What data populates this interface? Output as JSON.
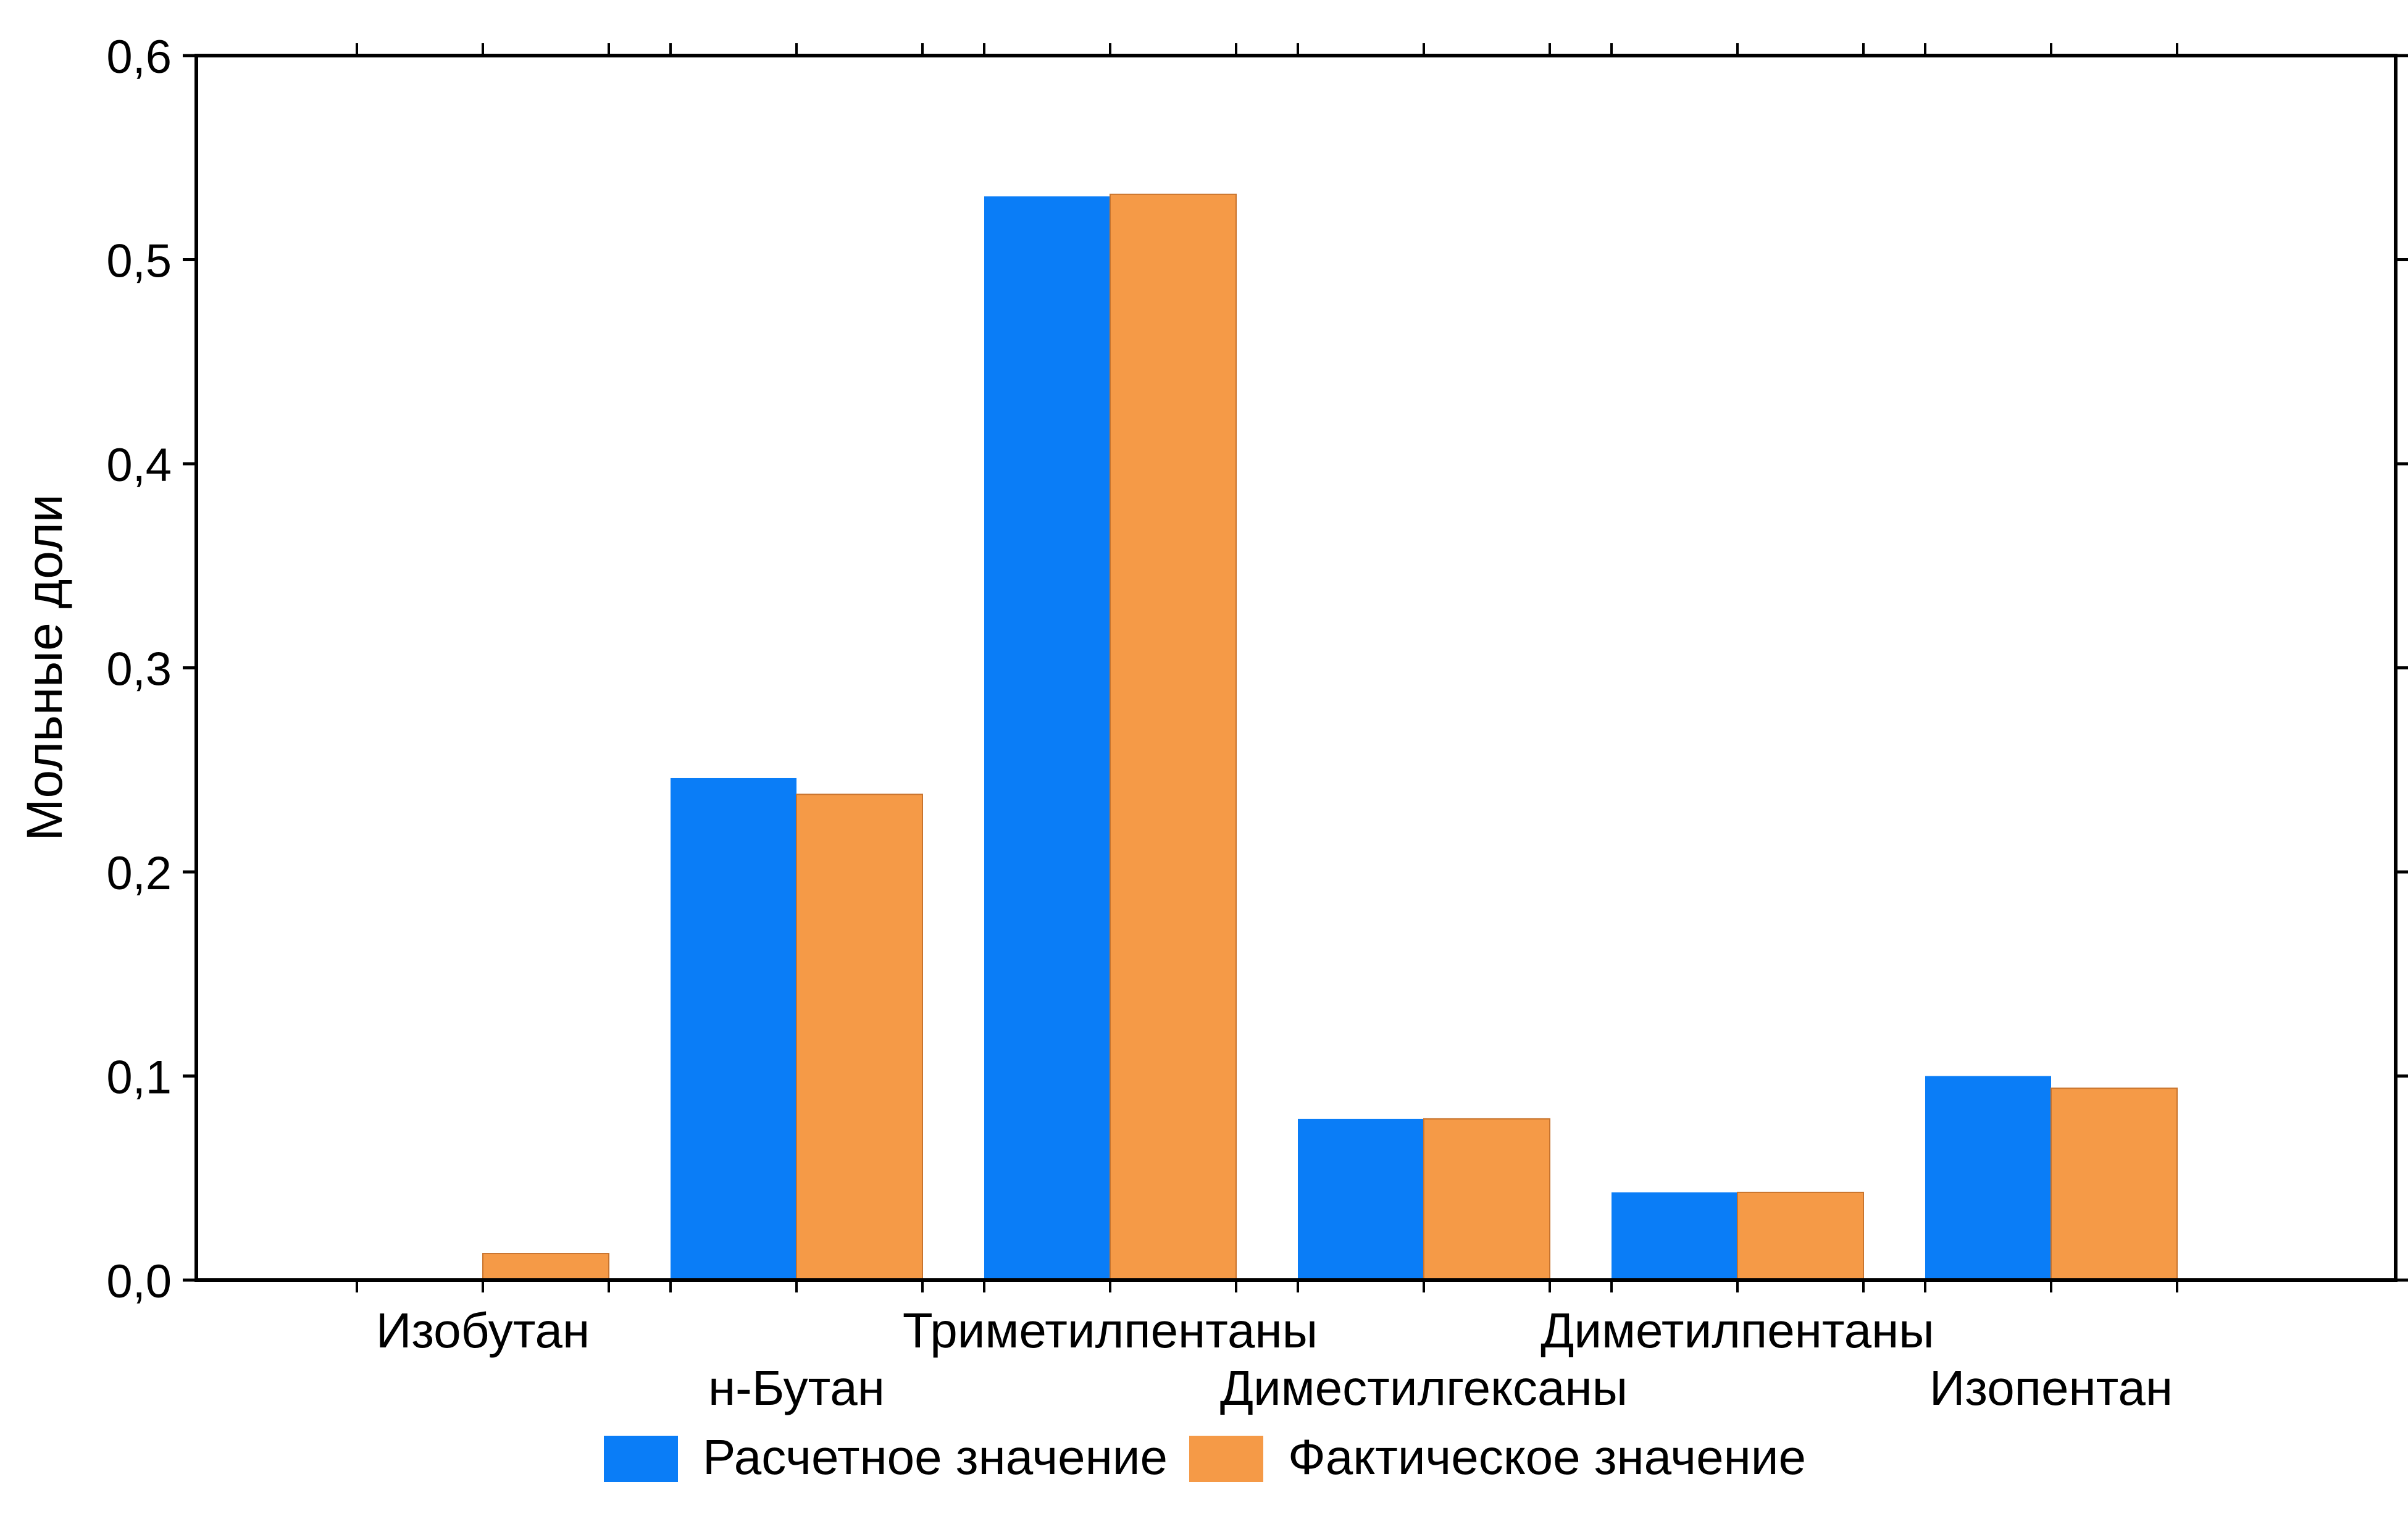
{
  "chart_data": {
    "type": "bar",
    "title": "",
    "xlabel": "",
    "ylabel": "Мольные доли",
    "ylim": [
      0,
      0.6
    ],
    "yticks": [
      "0,0",
      "0,1",
      "0,2",
      "0,3",
      "0,4",
      "0,5",
      "0,6"
    ],
    "ytick_values": [
      0,
      0.1,
      0.2,
      0.3,
      0.4,
      0.5,
      0.6
    ],
    "categories": [
      "Изобутан",
      "н-Бутан",
      "Триметилпентаны",
      "Диместилгексаны",
      "Диметилпентаны",
      "Изопентан"
    ],
    "category_label_rows": [
      0,
      1,
      0,
      1,
      0,
      1
    ],
    "series": [
      {
        "name": "Расчетное значение",
        "color": "#0a7df7",
        "values": [
          0,
          0.246,
          0.531,
          0.079,
          0.043,
          0.1
        ]
      },
      {
        "name": "Фактическое значение",
        "color": "#f59a47",
        "values": [
          0.013,
          0.238,
          0.532,
          0.079,
          0.043,
          0.094
        ]
      }
    ],
    "grid": false,
    "legend_position": "bottom-center"
  }
}
